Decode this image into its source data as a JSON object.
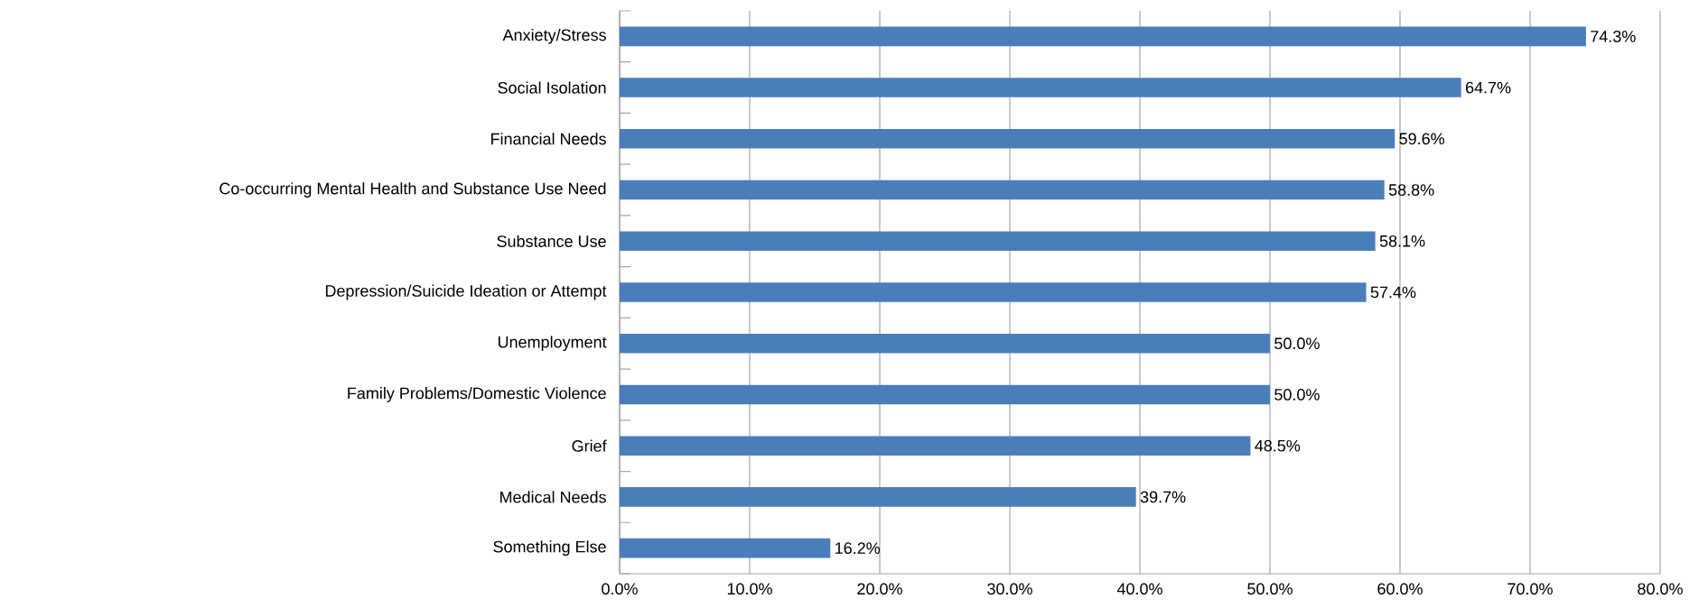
{
  "chart_data": {
    "type": "bar",
    "orientation": "horizontal",
    "color": "#4a7ebb",
    "categories": [
      "Anxiety/Stress",
      "Social Isolation",
      "Financial Needs",
      "Co-occurring Mental Health and Substance Use Need",
      "Substance Use",
      "Depression/Suicide Ideation or Attempt",
      "Unemployment",
      "Family Problems/Domestic Violence",
      "Grief",
      "Medical Needs",
      "Something Else"
    ],
    "values": [
      74.3,
      64.7,
      59.6,
      58.8,
      58.1,
      57.4,
      50.0,
      50.0,
      48.5,
      39.7,
      16.2
    ],
    "value_labels": [
      "74.3%",
      "64.7%",
      "59.6%",
      "58.8%",
      "58.1%",
      "57.4%",
      "50.0%",
      "50.0%",
      "48.5%",
      "39.7%",
      "16.2%"
    ],
    "xlim": [
      0,
      80
    ],
    "xticks": [
      {
        "value": 0,
        "label": "0.0%"
      },
      {
        "value": 10,
        "label": "10.0%"
      },
      {
        "value": 20,
        "label": "20.0%"
      },
      {
        "value": 30,
        "label": "30.0%"
      },
      {
        "value": 40,
        "label": "40.0%"
      },
      {
        "value": 50,
        "label": "50.0%"
      },
      {
        "value": 60,
        "label": "60.0%"
      },
      {
        "value": 70,
        "label": "70.0%"
      },
      {
        "value": 80,
        "label": "80.0%"
      }
    ],
    "grid": "x"
  }
}
